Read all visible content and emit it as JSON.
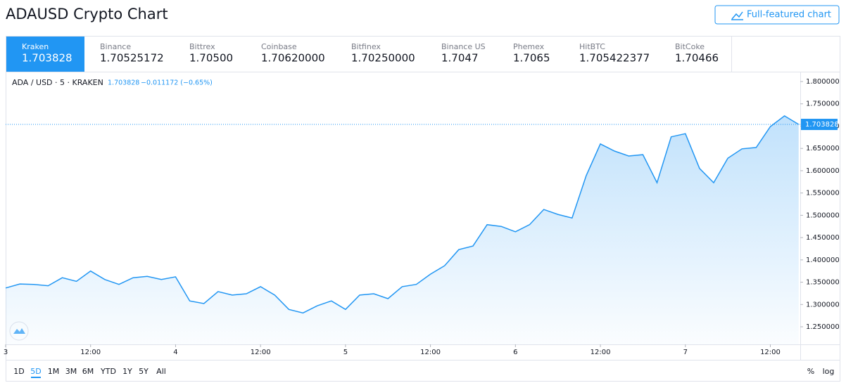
{
  "header": {
    "title": "ADAUSD Crypto Chart",
    "button": "Full-featured chart"
  },
  "exchanges": [
    {
      "name": "Kraken",
      "price": "1.703828"
    },
    {
      "name": "Binance",
      "price": "1.70525172"
    },
    {
      "name": "Bittrex",
      "price": "1.70500"
    },
    {
      "name": "Coinbase",
      "price": "1.70620000"
    },
    {
      "name": "Bitfinex",
      "price": "1.70250000"
    },
    {
      "name": "Binance US",
      "price": "1.7047"
    },
    {
      "name": "Phemex",
      "price": "1.7065"
    },
    {
      "name": "HitBTC",
      "price": "1.705422377"
    },
    {
      "name": "BitCoke",
      "price": "1.70466"
    }
  ],
  "active_exchange": 0,
  "chart_data": {
    "type": "area",
    "symbol": "ADA / USD · 5 · KRAKEN",
    "change": "−0.011172 (−0.65%)",
    "color": "#2196f3",
    "categories": [
      "3",
      null,
      null,
      null,
      null,
      null,
      "12:00",
      null,
      null,
      null,
      null,
      null,
      "4",
      null,
      null,
      null,
      null,
      null,
      "12:00",
      null,
      null,
      null,
      null,
      null,
      "5",
      null,
      null,
      null,
      null,
      null,
      "12:00",
      null,
      null,
      null,
      null,
      null,
      "6",
      null,
      null,
      null,
      null,
      null,
      "12:00",
      null,
      null,
      null,
      null,
      null,
      "7",
      null,
      null,
      null,
      null,
      null,
      "12:00",
      null,
      null
    ],
    "values": [
      1.337,
      1.346,
      1.345,
      1.342,
      1.36,
      1.352,
      1.375,
      1.356,
      1.345,
      1.36,
      1.363,
      1.356,
      1.362,
      1.308,
      1.302,
      1.329,
      1.321,
      1.324,
      1.34,
      1.321,
      1.289,
      1.281,
      1.297,
      1.308,
      1.289,
      1.321,
      1.324,
      1.313,
      1.34,
      1.345,
      1.368,
      1.387,
      1.423,
      1.431,
      1.479,
      1.475,
      1.463,
      1.479,
      1.513,
      1.502,
      1.494,
      1.589,
      1.66,
      1.644,
      1.633,
      1.636,
      1.573,
      1.676,
      1.683,
      1.605,
      1.573,
      1.628,
      1.649,
      1.652,
      1.699,
      1.723,
      1.703828
    ],
    "ylim": [
      1.2106,
      1.8205
    ],
    "yticks": [
      {
        "value": 1.25,
        "label": "1.250000"
      },
      {
        "value": 1.3,
        "label": "1.300000"
      },
      {
        "value": 1.35,
        "label": "1.350000"
      },
      {
        "value": 1.4,
        "label": "1.400000"
      },
      {
        "value": 1.45,
        "label": "1.450000"
      },
      {
        "value": 1.5,
        "label": "1.500000"
      },
      {
        "value": 1.55,
        "label": "1.550000"
      },
      {
        "value": 1.6,
        "label": "1.600000"
      },
      {
        "value": 1.65,
        "label": "1.650000"
      },
      {
        "value": 1.7,
        "label": "1.700000"
      },
      {
        "value": 1.75,
        "label": "1.750000"
      },
      {
        "value": 1.8,
        "label": "1.800000"
      }
    ]
  },
  "timeframes": [
    "1D",
    "5D",
    "1M",
    "3M",
    "6M",
    "YTD",
    "1Y",
    "5Y",
    "All"
  ],
  "active_timeframe": 1,
  "scale_options": [
    "%",
    "log"
  ]
}
